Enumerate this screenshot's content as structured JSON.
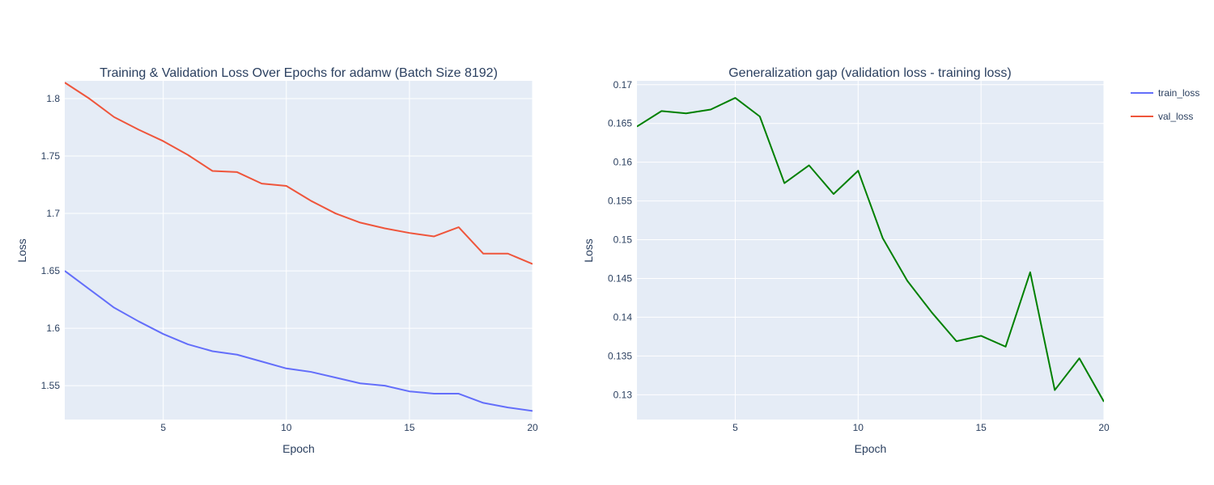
{
  "colors": {
    "plot_bg": "#E5ECF6",
    "grid": "#ffffff",
    "text": "#2a3f5f",
    "train": "#636efa",
    "val": "#EF553B",
    "gap": "#008000"
  },
  "legend": {
    "placement": "top-right",
    "items": [
      {
        "label": "train_loss",
        "color": "#636efa"
      },
      {
        "label": "val_loss",
        "color": "#EF553B"
      }
    ]
  },
  "chart_data": [
    {
      "type": "line",
      "title": "Training & Validation Loss Over Epochs for adamw (Batch Size 8192)",
      "xlabel": "Epoch",
      "ylabel": "Loss",
      "xlim": [
        1,
        20
      ],
      "ylim": [
        1.5205,
        1.8155
      ],
      "xticks": [
        5,
        10,
        15,
        20
      ],
      "yticks": [
        1.55,
        1.6,
        1.65,
        1.7,
        1.75,
        1.8
      ],
      "grid": true,
      "x": [
        1,
        2,
        3,
        4,
        5,
        6,
        7,
        8,
        9,
        10,
        11,
        12,
        13,
        14,
        15,
        16,
        17,
        18,
        19,
        20
      ],
      "series": [
        {
          "name": "train_loss",
          "color": "#636efa",
          "values": [
            1.65,
            1.634,
            1.618,
            1.606,
            1.595,
            1.586,
            1.58,
            1.577,
            1.571,
            1.565,
            1.562,
            1.557,
            1.552,
            1.55,
            1.545,
            1.543,
            1.543,
            1.535,
            1.531,
            1.528
          ]
        },
        {
          "name": "val_loss",
          "color": "#EF553B",
          "values": [
            1.814,
            1.8,
            1.784,
            1.773,
            1.763,
            1.751,
            1.737,
            1.736,
            1.726,
            1.724,
            1.711,
            1.7,
            1.692,
            1.687,
            1.683,
            1.68,
            1.688,
            1.665,
            1.665,
            1.656
          ]
        }
      ]
    },
    {
      "type": "line",
      "title": "Generalization gap (validation loss - training loss)",
      "xlabel": "Epoch",
      "ylabel": "Loss",
      "xlim": [
        1,
        20
      ],
      "ylim": [
        0.1268,
        0.1705
      ],
      "xticks": [
        5,
        10,
        15,
        20
      ],
      "yticks": [
        0.13,
        0.135,
        0.14,
        0.145,
        0.15,
        0.155,
        0.16,
        0.165,
        0.17
      ],
      "grid": true,
      "x": [
        1,
        2,
        3,
        4,
        5,
        6,
        7,
        8,
        9,
        10,
        11,
        12,
        13,
        14,
        15,
        16,
        17,
        18,
        19,
        20
      ],
      "series": [
        {
          "color": "#008000",
          "values": [
            0.1646,
            0.1666,
            0.1663,
            0.1668,
            0.1683,
            0.1659,
            0.1573,
            0.1596,
            0.1559,
            0.1589,
            0.1502,
            0.1447,
            0.1406,
            0.1369,
            0.1376,
            0.1362,
            0.1458,
            0.1306,
            0.1347,
            0.1291
          ]
        }
      ]
    }
  ]
}
